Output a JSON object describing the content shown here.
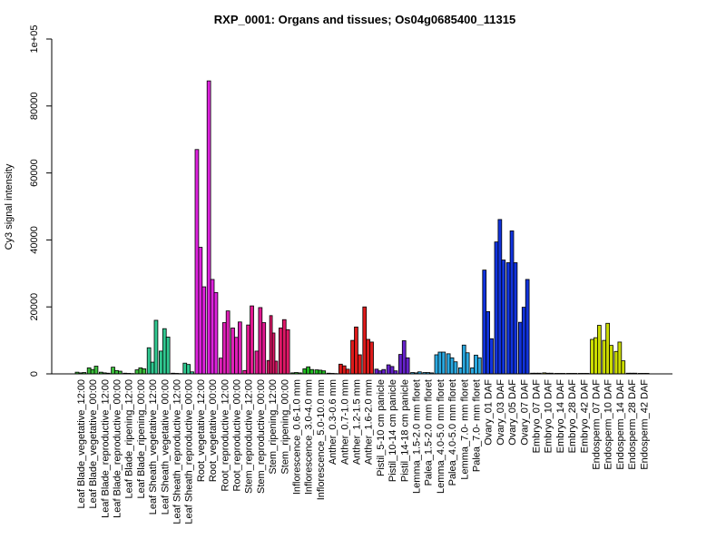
{
  "chart_data": {
    "type": "bar",
    "title": "RXP_0001: Organs and tissues; Os04g0685400_11315",
    "xlabel": "",
    "ylabel": "Cy3 signal intensity",
    "ylim": [
      0,
      100000
    ],
    "yticks": [
      0,
      20000,
      40000,
      60000,
      80000,
      100000
    ],
    "ytick_labels": [
      "0",
      "20000",
      "40000",
      "60000",
      "80000",
      "1e+05"
    ],
    "grid": false,
    "legend": "none",
    "categories": [
      "Leaf Blade_vegetative_12:00",
      "Leaf Blade_vegetative_00:00",
      "Leaf Blade_reproductive_12:00",
      "Leaf Blade_reproductive_00:00",
      "Leaf Blade_ripening_12:00",
      "Leaf Blade_ripening_00:00",
      "Leaf Sheath_vegetative_12:00",
      "Leaf Sheath_vegetative_00:00",
      "Leaf Sheath_reproductive_12:00",
      "Leaf Sheath_reproductive_00:00",
      "Root_vegetative_12:00",
      "Root_vegetative_00:00",
      "Root_reproductive_12:00",
      "Root_reproductive_00:00",
      "Stem_reproductive_12:00",
      "Stem_reproductive_00:00",
      "Stem_ripening_12:00",
      "Stem_ripening_00:00",
      "Inflorescence_0.6-1.0 mm",
      "Inflorescence_3.0-4.0 mm",
      "Inflorescence_5.0-10.0 mm",
      "Anther_0.3-0.6 mm",
      "Anther_0.7-1.0 mm",
      "Anther_1.2-1.5 mm",
      "Anther_1.6-2.0 mm",
      "Pistil_5-10 cm panicle",
      "Pistil_10-14 cm panicle",
      "Pistil_14-18 cm panicle",
      "Lemma_1.5-2.0 mm floret",
      "Palea_1.5-2.0 mm floret",
      "Lemma_4.0-5.0 mm floret",
      "Palea_4.0-5.0 mm floret",
      "Lemma_7.0- mm floret",
      "Palea_7.0- mm floret",
      "Ovary_01 DAF",
      "Ovary_03 DAF",
      "Ovary_05 DAF",
      "Ovary_07 DAF",
      "Embryo_07 DAF",
      "Embryo_10 DAF",
      "Embryo_14 DAF",
      "Embryo_28 DAF",
      "Embryo_42 DAF",
      "Endosperm_07 DAF",
      "Endosperm_10 DAF",
      "Endosperm_14 DAF",
      "Endosperm_28 DAF",
      "Endosperm_42 DAF"
    ],
    "replicates": [
      [
        500,
        300,
        400
      ],
      [
        1800,
        1300,
        2300
      ],
      [
        500,
        300,
        200
      ],
      [
        2000,
        1000,
        800
      ],
      [
        200,
        150,
        100
      ],
      [
        1200,
        1800,
        1500
      ],
      [
        7800,
        3500,
        16000
      ],
      [
        6800,
        13500,
        11000
      ],
      [
        200,
        150,
        100
      ],
      [
        3200,
        2800,
        600
      ],
      [
        67000,
        37800,
        26000
      ],
      [
        87500,
        28200,
        24300
      ],
      [
        4700,
        15300,
        18800
      ],
      [
        13700,
        10900,
        15500
      ],
      [
        1000,
        14600,
        20300
      ],
      [
        6800,
        19800,
        15300
      ],
      [
        4000,
        17400,
        12200,
        3800
      ],
      [
        13700,
        16200,
        13200
      ],
      [
        300,
        400,
        300
      ],
      [
        1500,
        2100,
        1300
      ],
      [
        1200,
        1100,
        900
      ],
      [
        200,
        150,
        100
      ],
      [
        2900,
        2400,
        1400
      ],
      [
        10000,
        14000,
        5700
      ],
      [
        20000,
        10300,
        9500
      ],
      [
        1400,
        900,
        1300
      ],
      [
        2700,
        2200,
        900
      ],
      [
        5800,
        9900,
        4800
      ],
      [
        400,
        300,
        600
      ],
      [
        400,
        400,
        300
      ],
      [
        5700,
        6500,
        6500
      ],
      [
        6000,
        4800,
        3600
      ],
      [
        1800,
        8600,
        6300
      ],
      [
        1800,
        5600,
        4800
      ],
      [
        31000,
        18600,
        10500
      ],
      [
        39400,
        46100,
        34000
      ],
      [
        33200,
        42700,
        33200
      ],
      [
        15400,
        19900,
        28200
      ],
      [
        200,
        200,
        200
      ],
      [
        300,
        200,
        200
      ],
      [
        150,
        150,
        150
      ],
      [
        150,
        150,
        150
      ],
      [
        150,
        150,
        150
      ],
      [
        10300,
        10800,
        14500
      ],
      [
        10000,
        15100,
        8500
      ],
      [
        6700,
        9500,
        3900
      ],
      [
        200,
        200,
        200
      ],
      [
        150,
        150,
        150
      ]
    ],
    "group_colors": [
      "#3cbf3c",
      "#3cbf3c",
      "#3cbf3c",
      "#3cbf3c",
      "#3cbf3c",
      "#3cbf3c",
      "#30c890",
      "#30c890",
      "#30c890",
      "#30c890",
      "#dd22dd",
      "#dd22dd",
      "#e020b8",
      "#e020b8",
      "#e01890",
      "#e01890",
      "#e01868",
      "#e01868",
      "#22bb22",
      "#22bb22",
      "#22bb22",
      "#dd1a1a",
      "#dd1a1a",
      "#dd1a1a",
      "#dd1a1a",
      "#6622cc",
      "#6622cc",
      "#6622cc",
      "#2aa8e0",
      "#2aa8e0",
      "#2aa8e0",
      "#2aa8e0",
      "#2aa8e0",
      "#2aa8e0",
      "#1133dd",
      "#1133dd",
      "#1133dd",
      "#1133dd",
      "#d8d800",
      "#d8d800",
      "#d8d800",
      "#d8d800",
      "#d8d800",
      "#ccdd00",
      "#ccdd00",
      "#ccdd00",
      "#ccdd00",
      "#ccdd00"
    ]
  }
}
